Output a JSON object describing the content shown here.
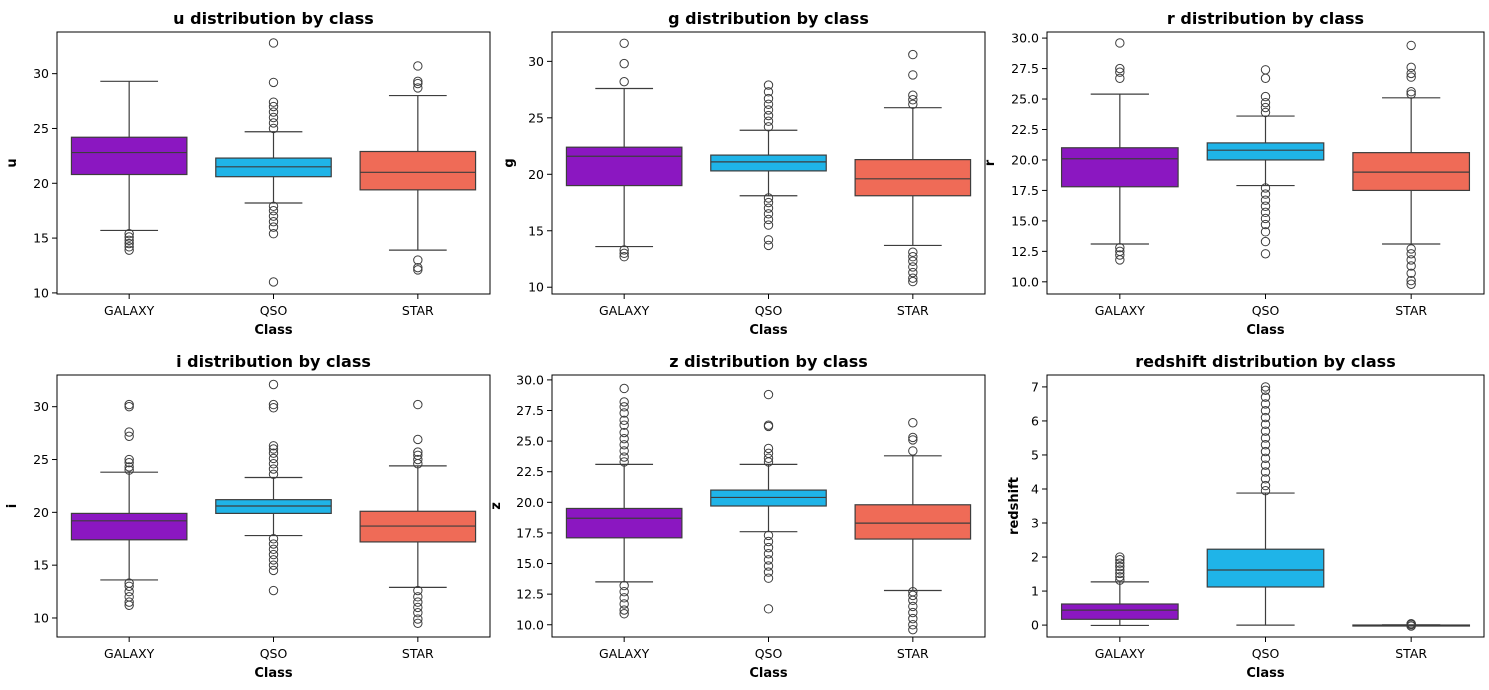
{
  "chart_data": [
    {
      "type": "box",
      "title": "u distribution by class",
      "xlabel": "Class",
      "ylabel": "u",
      "ylim": [
        9.9,
        33.8
      ],
      "yticks": [
        10,
        15,
        20,
        25,
        30
      ],
      "categories": [
        "GALAXY",
        "QSO",
        "STAR"
      ],
      "colors": [
        "#8b17c1",
        "#1fb4e8",
        "#ef6b57"
      ],
      "boxes": [
        {
          "q1": 20.8,
          "median": 22.8,
          "q3": 24.2,
          "whisker_low": 15.7,
          "whisker_high": 29.3,
          "outliers": [
            13.9,
            14.2,
            14.5,
            14.8,
            15.1,
            15.4
          ]
        },
        {
          "q1": 20.6,
          "median": 21.5,
          "q3": 22.3,
          "whisker_low": 18.2,
          "whisker_high": 24.7,
          "outliers": [
            11.0,
            15.4,
            16.0,
            16.5,
            17.0,
            17.5,
            17.9,
            25.0,
            25.5,
            26.0,
            26.5,
            27.0,
            27.4,
            29.2,
            32.8
          ]
        },
        {
          "q1": 19.4,
          "median": 21.0,
          "q3": 22.9,
          "whisker_low": 13.9,
          "whisker_high": 28.0,
          "outliers": [
            12.1,
            12.3,
            13.0,
            28.7,
            29.1,
            29.3,
            30.7
          ]
        }
      ]
    },
    {
      "type": "box",
      "title": "g distribution by class",
      "xlabel": "Class",
      "ylabel": "g",
      "ylim": [
        9.4,
        32.6
      ],
      "yticks": [
        10,
        15,
        20,
        25,
        30
      ],
      "categories": [
        "GALAXY",
        "QSO",
        "STAR"
      ],
      "colors": [
        "#8b17c1",
        "#1fb4e8",
        "#ef6b57"
      ],
      "boxes": [
        {
          "q1": 19.0,
          "median": 21.6,
          "q3": 22.4,
          "whisker_low": 13.6,
          "whisker_high": 27.6,
          "outliers": [
            12.7,
            13.0,
            13.3,
            28.2,
            29.8,
            31.6
          ]
        },
        {
          "q1": 20.3,
          "median": 21.1,
          "q3": 21.7,
          "whisker_low": 18.1,
          "whisker_high": 23.9,
          "outliers": [
            13.7,
            14.2,
            15.5,
            16.0,
            16.5,
            17.0,
            17.5,
            17.9,
            24.2,
            24.7,
            25.2,
            25.7,
            26.2,
            26.7,
            27.3,
            27.9
          ]
        },
        {
          "q1": 18.1,
          "median": 19.6,
          "q3": 21.3,
          "whisker_low": 13.7,
          "whisker_high": 25.9,
          "outliers": [
            10.5,
            10.8,
            11.3,
            11.8,
            12.3,
            12.7,
            13.1,
            26.2,
            26.6,
            27.0,
            28.8,
            30.6
          ]
        }
      ]
    },
    {
      "type": "box",
      "title": "r distribution by class",
      "xlabel": "Class",
      "ylabel": "r",
      "ylim": [
        9.0,
        30.5
      ],
      "yticks": [
        10.0,
        12.5,
        15.0,
        17.5,
        20.0,
        22.5,
        25.0,
        27.5,
        30.0
      ],
      "categories": [
        "GALAXY",
        "QSO",
        "STAR"
      ],
      "colors": [
        "#8b17c1",
        "#1fb4e8",
        "#ef6b57"
      ],
      "boxes": [
        {
          "q1": 17.8,
          "median": 20.1,
          "q3": 21.0,
          "whisker_low": 13.1,
          "whisker_high": 25.4,
          "outliers": [
            11.8,
            12.2,
            12.5,
            12.8,
            26.7,
            27.2,
            27.5,
            29.6
          ]
        },
        {
          "q1": 20.0,
          "median": 20.8,
          "q3": 21.4,
          "whisker_low": 17.9,
          "whisker_high": 23.6,
          "outliers": [
            12.3,
            13.3,
            14.1,
            14.7,
            15.2,
            15.7,
            16.2,
            16.7,
            17.2,
            17.7,
            23.9,
            24.3,
            24.7,
            25.2,
            26.7,
            27.4
          ]
        },
        {
          "q1": 17.5,
          "median": 19.0,
          "q3": 20.6,
          "whisker_low": 13.1,
          "whisker_high": 25.1,
          "outliers": [
            9.8,
            10.1,
            10.7,
            11.3,
            11.8,
            12.3,
            12.7,
            25.4,
            25.6,
            26.8,
            27.1,
            27.6,
            29.4
          ]
        }
      ]
    },
    {
      "type": "box",
      "title": "i distribution by class",
      "xlabel": "Class",
      "ylabel": "i",
      "ylim": [
        8.2,
        33.0
      ],
      "yticks": [
        10,
        15,
        20,
        25,
        30
      ],
      "categories": [
        "GALAXY",
        "QSO",
        "STAR"
      ],
      "colors": [
        "#8b17c1",
        "#1fb4e8",
        "#ef6b57"
      ],
      "boxes": [
        {
          "q1": 17.4,
          "median": 19.2,
          "q3": 19.9,
          "whisker_low": 13.6,
          "whisker_high": 23.8,
          "outliers": [
            11.2,
            11.5,
            12.0,
            12.5,
            13.0,
            13.3,
            24.0,
            24.3,
            24.7,
            25.0,
            27.2,
            27.6,
            30.0,
            30.2
          ]
        },
        {
          "q1": 19.9,
          "median": 20.6,
          "q3": 21.2,
          "whisker_low": 17.8,
          "whisker_high": 23.3,
          "outliers": [
            12.6,
            14.5,
            15.0,
            15.5,
            16.0,
            16.5,
            17.0,
            17.5,
            23.6,
            24.1,
            24.6,
            25.1,
            25.6,
            26.0,
            26.3,
            29.9,
            30.2,
            32.1
          ]
        },
        {
          "q1": 17.2,
          "median": 18.7,
          "q3": 20.1,
          "whisker_low": 12.9,
          "whisker_high": 24.4,
          "outliers": [
            9.5,
            9.9,
            10.5,
            11.0,
            11.5,
            12.0,
            12.6,
            24.6,
            25.0,
            25.4,
            25.7,
            26.9,
            30.2
          ]
        }
      ]
    },
    {
      "type": "box",
      "title": "z distribution by class",
      "xlabel": "Class",
      "ylabel": "z",
      "ylim": [
        9.0,
        30.4
      ],
      "yticks": [
        10.0,
        12.5,
        15.0,
        17.5,
        20.0,
        22.5,
        25.0,
        27.5,
        30.0
      ],
      "categories": [
        "GALAXY",
        "QSO",
        "STAR"
      ],
      "colors": [
        "#8b17c1",
        "#1fb4e8",
        "#ef6b57"
      ],
      "boxes": [
        {
          "q1": 17.1,
          "median": 18.7,
          "q3": 19.5,
          "whisker_low": 13.5,
          "whisker_high": 23.1,
          "outliers": [
            10.9,
            11.2,
            11.7,
            12.2,
            12.7,
            13.2,
            23.3,
            23.7,
            24.2,
            24.7,
            25.2,
            25.7,
            26.3,
            26.7,
            27.3,
            27.8,
            28.2,
            29.3
          ]
        },
        {
          "q1": 19.7,
          "median": 20.4,
          "q3": 21.0,
          "whisker_low": 17.6,
          "whisker_high": 23.1,
          "outliers": [
            11.3,
            13.8,
            14.3,
            14.8,
            15.3,
            15.8,
            16.3,
            16.8,
            17.3,
            23.3,
            23.6,
            24.0,
            24.4,
            26.2,
            26.3,
            28.8
          ]
        },
        {
          "q1": 17.0,
          "median": 18.3,
          "q3": 19.8,
          "whisker_low": 12.8,
          "whisker_high": 23.8,
          "outliers": [
            9.6,
            10.0,
            10.5,
            11.0,
            11.5,
            12.0,
            12.4,
            12.7,
            24.2,
            25.1,
            25.3,
            26.5
          ]
        }
      ]
    },
    {
      "type": "box",
      "title": "redshift distribution by class",
      "xlabel": "Class",
      "ylabel": "redshift",
      "ylim": [
        -0.35,
        7.35
      ],
      "yticks": [
        0,
        1,
        2,
        3,
        4,
        5,
        6,
        7
      ],
      "categories": [
        "GALAXY",
        "QSO",
        "STAR"
      ],
      "colors": [
        "#8b17c1",
        "#1fb4e8",
        "#ef6b57"
      ],
      "boxes": [
        {
          "q1": 0.17,
          "median": 0.44,
          "q3": 0.62,
          "whisker_low": -0.01,
          "whisker_high": 1.27,
          "outliers": [
            1.32,
            1.42,
            1.52,
            1.62,
            1.72,
            1.82,
            1.92,
            2.0
          ]
        },
        {
          "q1": 1.12,
          "median": 1.62,
          "q3": 2.23,
          "whisker_low": 0.0,
          "whisker_high": 3.88,
          "outliers": [
            3.95,
            4.1,
            4.3,
            4.5,
            4.7,
            4.9,
            5.1,
            5.3,
            5.5,
            5.7,
            5.9,
            6.1,
            6.3,
            6.5,
            6.7,
            6.9,
            7.0
          ]
        },
        {
          "q1": -0.002,
          "median": 0.0,
          "q3": 0.002,
          "whisker_low": -0.006,
          "whisker_high": 0.006,
          "outliers": [
            -0.03,
            -0.02,
            0.02,
            0.03,
            0.04
          ]
        }
      ]
    }
  ]
}
